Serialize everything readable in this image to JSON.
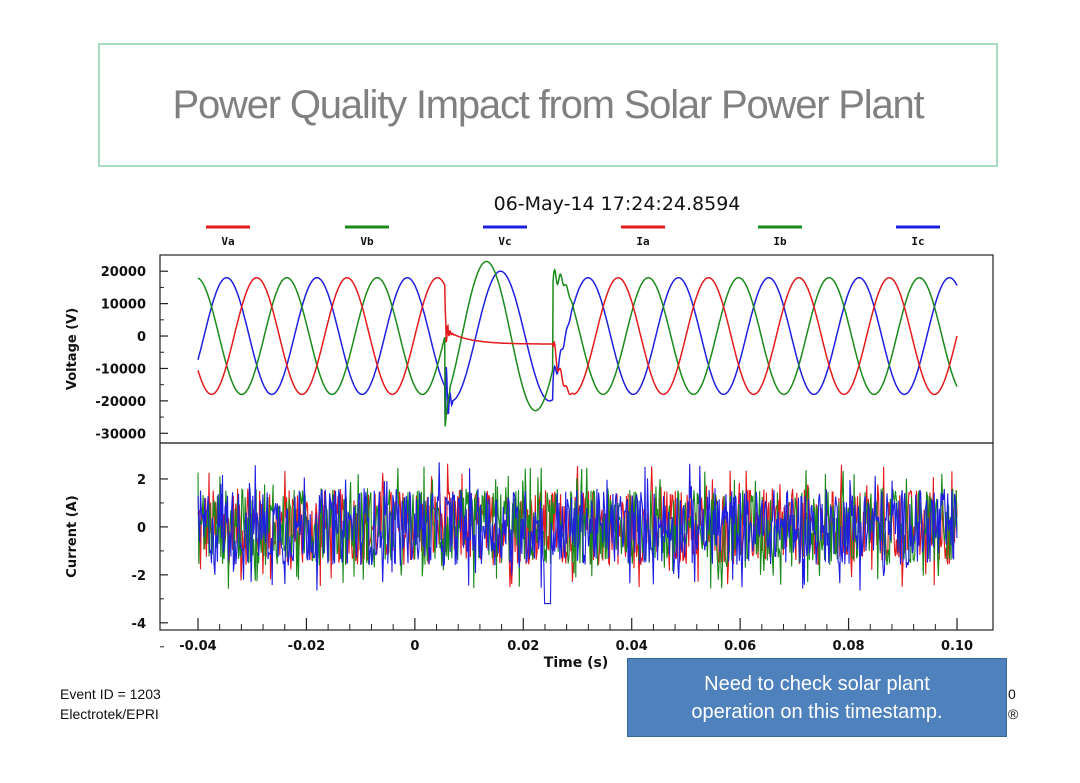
{
  "slide": {
    "title": "Power Quality Impact from Solar Power Plant",
    "callout_line1": "Need to check solar plant",
    "callout_line2": "operation on this timestamp.",
    "footer_event": "Event ID = 1203",
    "footer_source": "Electrotek/EPRI",
    "edge_char_1": "0",
    "edge_char_2": "®"
  },
  "chart_data": {
    "type": "line",
    "title": "06-May-14 17:24:24.8594",
    "xlabel": "Time (s)",
    "xlim": [
      -0.04,
      0.1
    ],
    "x_ticks": [
      -0.04,
      -0.02,
      0,
      0.02,
      0.04,
      0.06,
      0.08,
      0.1
    ],
    "x_tick_labels": [
      "-0.04",
      "-0.02",
      "0",
      "0.02",
      "0.04",
      "0.06",
      "0.08",
      "0.10"
    ],
    "legend_position": "top",
    "series": [
      {
        "name": "Va",
        "color": "#e41a1c"
      },
      {
        "name": "Vb",
        "color": "#1a8a1a"
      },
      {
        "name": "Vc",
        "color": "#1f1fe0"
      },
      {
        "name": "Ia",
        "color": "#e41a1c"
      },
      {
        "name": "Ib",
        "color": "#1a8a1a"
      },
      {
        "name": "Ic",
        "color": "#1f1fe0"
      }
    ],
    "voltage_panel": {
      "ylabel": "Voltage (V)",
      "ylim": [
        -33000,
        25000
      ],
      "y_ticks": [
        20000,
        10000,
        0,
        -10000,
        -20000,
        -30000
      ],
      "y_tick_labels": [
        "20000",
        "10000",
        "0",
        "-10000",
        "-20000",
        "-30000"
      ],
      "nominal_amplitude": 18000,
      "frequency_hz": 60,
      "sag_start_s": 0.0055,
      "sag_end_s": 0.0255,
      "sag_va_level": -2500,
      "vb_peak_during_sag": 23000,
      "vc_peak_during_sag": 20000,
      "min_vc_at_sag_start": -30000
    },
    "current_panel": {
      "ylabel": "Current (A)",
      "ylim": [
        -4.3,
        3.5
      ],
      "y_ticks": [
        2,
        0,
        -2,
        -4
      ],
      "y_tick_labels": [
        "2",
        "0",
        "-2",
        "-4"
      ],
      "noise_range": [
        -2.6,
        2.9
      ],
      "min_value": -3.9
    }
  }
}
